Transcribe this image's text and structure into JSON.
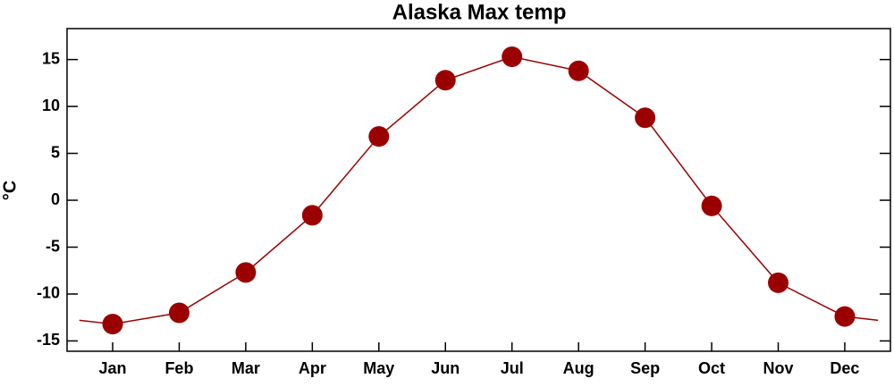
{
  "chart_data": {
    "type": "line",
    "title": "Alaska Max temp",
    "y_label": "°C",
    "categories": [
      "Jan",
      "Feb",
      "Mar",
      "Apr",
      "May",
      "Jun",
      "Jul",
      "Aug",
      "Sep",
      "Oct",
      "Nov",
      "Dec"
    ],
    "values": [
      -13.2,
      -12.0,
      -7.7,
      -1.6,
      6.8,
      12.8,
      15.3,
      13.8,
      8.8,
      -0.6,
      -8.8,
      -12.4
    ],
    "color": "#9b0000",
    "ylim": [
      -16.1,
      18.3
    ],
    "yticks": [
      -15,
      -10,
      -5,
      0,
      5,
      10,
      15
    ]
  }
}
